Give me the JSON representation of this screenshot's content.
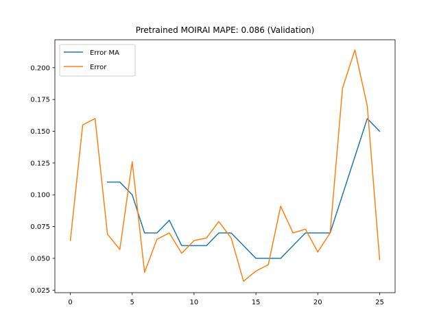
{
  "chart_data": {
    "type": "line",
    "title": "Pretrained MOIRAI MAPE: 0.086 (Validation)",
    "xlabel": "",
    "ylabel": "",
    "xlim": [
      -1.25,
      26.25
    ],
    "ylim": [
      0.023,
      0.222
    ],
    "xticks": [
      0,
      5,
      10,
      15,
      20,
      25
    ],
    "xtick_labels": [
      "0",
      "5",
      "10",
      "15",
      "20",
      "25"
    ],
    "yticks": [
      0.025,
      0.05,
      0.075,
      0.1,
      0.125,
      0.15,
      0.175,
      0.2
    ],
    "ytick_labels": [
      "0.025",
      "0.050",
      "0.075",
      "0.100",
      "0.125",
      "0.150",
      "0.175",
      "0.200"
    ],
    "grid": false,
    "legend_position": "top-left",
    "series": [
      {
        "name": "Error MA",
        "color": "#1f77b4",
        "x": [
          3,
          4,
          5,
          6,
          7,
          8,
          9,
          10,
          11,
          12,
          13,
          14,
          15,
          16,
          17,
          18,
          19,
          20,
          21,
          22,
          23,
          24,
          25
        ],
        "y": [
          0.11,
          0.11,
          0.1,
          0.07,
          0.07,
          0.08,
          0.06,
          0.06,
          0.06,
          0.07,
          0.07,
          0.06,
          0.05,
          0.05,
          0.05,
          0.06,
          0.07,
          0.07,
          0.07,
          0.1,
          0.13,
          0.16,
          0.15
        ]
      },
      {
        "name": "Error",
        "color": "#ff7f0e",
        "x": [
          0,
          1,
          2,
          3,
          4,
          5,
          6,
          7,
          8,
          9,
          10,
          11,
          12,
          13,
          14,
          15,
          16,
          17,
          18,
          19,
          20,
          21,
          22,
          23,
          24,
          25
        ],
        "y": [
          0.064,
          0.155,
          0.16,
          0.069,
          0.057,
          0.126,
          0.039,
          0.065,
          0.07,
          0.054,
          0.064,
          0.066,
          0.079,
          0.066,
          0.032,
          0.04,
          0.045,
          0.091,
          0.07,
          0.073,
          0.055,
          0.07,
          0.184,
          0.214,
          0.17,
          0.049
        ]
      }
    ]
  }
}
